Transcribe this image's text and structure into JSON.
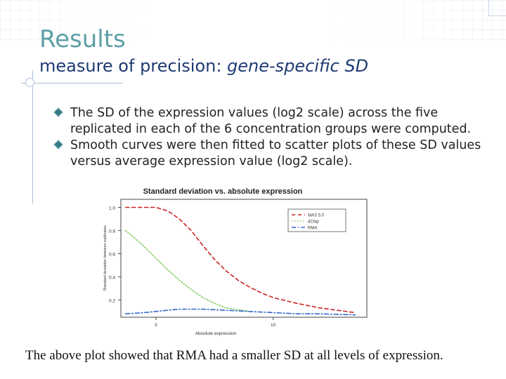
{
  "slide": {
    "title": "Results",
    "subtitle_prefix": "measure of precision: ",
    "subtitle_emphasis": "gene-specific SD",
    "bullets": [
      "The SD of the expression values (log2 scale) across the five replicated in each of the 6 concentration groups were computed.",
      "Smooth curves were then fitted to scatter plots of these SD values versus average expression value (log2 scale)."
    ],
    "caption": "The above plot showed that RMA had a smaller SD at all levels of expression."
  },
  "colors": {
    "title": "#5e9fa6",
    "subtitle": "#1f3a73",
    "mas": "#cc2222",
    "dchip": "#88cc66",
    "rma": "#3366cc"
  },
  "chart_data": {
    "type": "line",
    "title": "Standard deviation vs. absolute expression",
    "xlabel": "Absolute expression",
    "ylabel": "Standard deviation between replicates",
    "xlim": [
      3.5,
      14
    ],
    "ylim": [
      0.05,
      1.07
    ],
    "x_ticks": [
      5,
      10
    ],
    "x_tick_labels": [
      "5",
      "10"
    ],
    "y_ticks": [
      0.2,
      0.4,
      0.6,
      0.8,
      1.0
    ],
    "y_tick_labels": [
      "0.2",
      "0.4",
      "0.6",
      "0.8",
      "1.0"
    ],
    "legend_position": "top-right",
    "series": [
      {
        "name": "MAS 5.0",
        "color": "#cc2222",
        "dash": "dashed",
        "x": [
          3.7,
          5.0,
          5.5,
          6.0,
          6.5,
          7.0,
          7.5,
          8.0,
          8.5,
          9.0,
          9.5,
          10.0,
          11.0,
          12.0,
          13.5
        ],
        "y": [
          1.0,
          1.0,
          0.97,
          0.9,
          0.8,
          0.67,
          0.55,
          0.45,
          0.37,
          0.31,
          0.26,
          0.22,
          0.17,
          0.13,
          0.09
        ]
      },
      {
        "name": "dChip",
        "color": "#88cc66",
        "dash": "dotted",
        "x": [
          3.7,
          4.0,
          4.5,
          5.0,
          5.5,
          6.0,
          6.5,
          7.0,
          7.5,
          8.0,
          9.0
        ],
        "y": [
          0.8,
          0.75,
          0.66,
          0.56,
          0.46,
          0.37,
          0.29,
          0.22,
          0.17,
          0.13,
          0.1
        ]
      },
      {
        "name": "RMA",
        "color": "#3366cc",
        "dash": "dashdot",
        "x": [
          3.7,
          4.5,
          5.5,
          6.0,
          7.0,
          8.0,
          9.0,
          10.0,
          11.0,
          12.0,
          13.5
        ],
        "y": [
          0.08,
          0.09,
          0.11,
          0.12,
          0.12,
          0.11,
          0.1,
          0.09,
          0.08,
          0.08,
          0.07
        ]
      }
    ]
  }
}
